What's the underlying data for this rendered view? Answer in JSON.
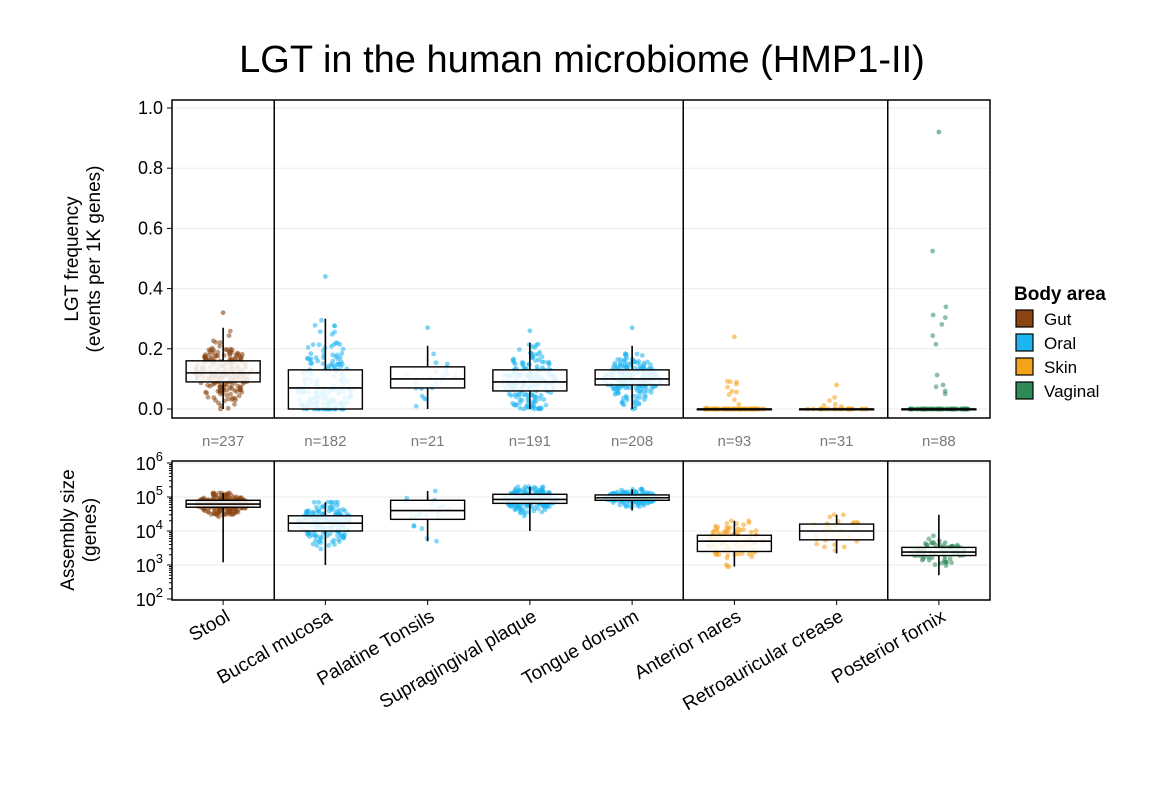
{
  "chart_data": {
    "type": "box",
    "title": "LGT in the human microbiome (HMP1-II)",
    "categories": [
      "Stool",
      "Buccal mucosa",
      "Palatine Tonsils",
      "Supragingival plaque",
      "Tongue dorsum",
      "Anterior nares",
      "Retroauricular crease",
      "Posterior fornix"
    ],
    "body_area": [
      "Gut",
      "Oral",
      "Oral",
      "Oral",
      "Oral",
      "Skin",
      "Skin",
      "Vaginal"
    ],
    "counts": [
      "n=237",
      "n=182",
      "n=21",
      "n=191",
      "n=208",
      "n=93",
      "n=31",
      "n=88"
    ],
    "legend": {
      "title": "Body area",
      "placement": "right",
      "items": [
        {
          "label": "Gut",
          "color": "#8B4513"
        },
        {
          "label": "Oral",
          "color": "#1EB4F0"
        },
        {
          "label": "Skin",
          "color": "#F5A21B"
        },
        {
          "label": "Vaginal",
          "color": "#2E8B57"
        }
      ]
    },
    "top_panel": {
      "ylabel_line1": "LGT frequency",
      "ylabel_line2": "(events per 1K genes)",
      "ylim": [
        0,
        1.0
      ],
      "yticks": [
        "0.0",
        "0.2",
        "0.4",
        "0.6",
        "0.8",
        "1.0"
      ],
      "boxes": [
        {
          "q1": 0.09,
          "median": 0.12,
          "q3": 0.16,
          "whisker_low": 0.0,
          "whisker_high": 0.27,
          "max_point": 0.32
        },
        {
          "q1": 0.0,
          "median": 0.07,
          "q3": 0.13,
          "whisker_low": 0.0,
          "whisker_high": 0.3,
          "max_point": 0.44
        },
        {
          "q1": 0.07,
          "median": 0.1,
          "q3": 0.14,
          "whisker_low": 0.0,
          "whisker_high": 0.21,
          "max_point": 0.27
        },
        {
          "q1": 0.06,
          "median": 0.09,
          "q3": 0.13,
          "whisker_low": 0.0,
          "whisker_high": 0.22,
          "max_point": 0.26
        },
        {
          "q1": 0.08,
          "median": 0.1,
          "q3": 0.13,
          "whisker_low": 0.0,
          "whisker_high": 0.21,
          "max_point": 0.27
        },
        {
          "q1": 0.0,
          "median": 0.0,
          "q3": 0.0,
          "whisker_low": 0.0,
          "whisker_high": 0.0,
          "max_point": 0.24
        },
        {
          "q1": 0.0,
          "median": 0.0,
          "q3": 0.0,
          "whisker_low": 0.0,
          "whisker_high": 0.0,
          "max_point": 0.08
        },
        {
          "q1": 0.0,
          "median": 0.0,
          "q3": 0.0,
          "whisker_low": 0.0,
          "whisker_high": 0.0,
          "max_point": 0.92
        }
      ]
    },
    "bottom_panel": {
      "ylabel_line1": "Assembly size",
      "ylabel_line2": "(genes)",
      "scale": "log10",
      "ylim": [
        100,
        1000000
      ],
      "yticks": [
        {
          "base": "10",
          "exp": "2"
        },
        {
          "base": "10",
          "exp": "3"
        },
        {
          "base": "10",
          "exp": "4"
        },
        {
          "base": "10",
          "exp": "5"
        },
        {
          "base": "10",
          "exp": "6"
        }
      ],
      "boxes": [
        {
          "q1": 50000,
          "median": 62000,
          "q3": 80000,
          "whisker_low": 1200,
          "whisker_high": 130000
        },
        {
          "q1": 10000,
          "median": 17000,
          "q3": 28000,
          "whisker_low": 1000,
          "whisker_high": 70000
        },
        {
          "q1": 22000,
          "median": 40000,
          "q3": 80000,
          "whisker_low": 5000,
          "whisker_high": 150000
        },
        {
          "q1": 65000,
          "median": 85000,
          "q3": 120000,
          "whisker_low": 10000,
          "whisker_high": 200000
        },
        {
          "q1": 80000,
          "median": 95000,
          "q3": 115000,
          "whisker_low": 40000,
          "whisker_high": 170000
        },
        {
          "q1": 2500,
          "median": 5000,
          "q3": 7500,
          "whisker_low": 900,
          "whisker_high": 20000
        },
        {
          "q1": 5500,
          "median": 10000,
          "q3": 16000,
          "whisker_low": 2200,
          "whisker_high": 30000
        },
        {
          "q1": 1900,
          "median": 2400,
          "q3": 3300,
          "whisker_low": 500,
          "whisker_high": 30000
        }
      ]
    }
  }
}
